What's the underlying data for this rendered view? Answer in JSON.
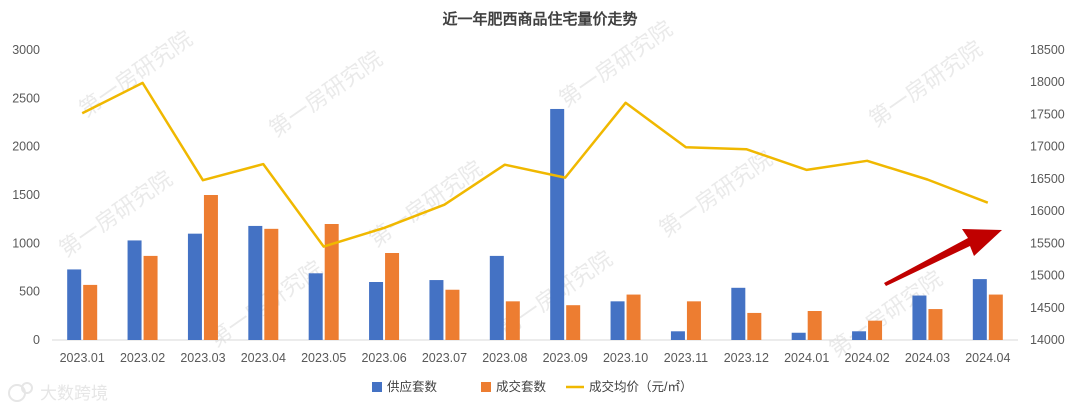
{
  "chart_data": {
    "type": "bar",
    "title": "近一年肥西商品住宅量价走势",
    "categories": [
      "2023.01",
      "2023.02",
      "2023.03",
      "2023.04",
      "2023.05",
      "2023.06",
      "2023.07",
      "2023.08",
      "2023.09",
      "2023.10",
      "2023.11",
      "2023.12",
      "2024.01",
      "2024.02",
      "2024.03",
      "2024.04"
    ],
    "series": [
      {
        "name": "供应套数",
        "type": "bar",
        "axis": "left",
        "color": "#4472c4",
        "values": [
          730,
          1030,
          1100,
          1180,
          690,
          600,
          620,
          870,
          2390,
          400,
          90,
          540,
          75,
          90,
          460,
          630
        ]
      },
      {
        "name": "成交套数",
        "type": "bar",
        "axis": "left",
        "color": "#ed7d31",
        "values": [
          570,
          870,
          1500,
          1150,
          1200,
          900,
          520,
          400,
          360,
          470,
          400,
          280,
          300,
          200,
          320,
          470
        ]
      },
      {
        "name": "成交均价（元/㎡）",
        "type": "line",
        "axis": "right",
        "color": "#f0b800",
        "values": [
          17520,
          17990,
          16480,
          16730,
          15450,
          15740,
          16100,
          16720,
          16520,
          17680,
          16990,
          16960,
          16640,
          16780,
          16490,
          16130
        ]
      }
    ],
    "left_axis": {
      "ticks": [
        "3000",
        "2500",
        "2000",
        "1500",
        "1000",
        "500",
        "0"
      ],
      "ylim": [
        0,
        3000
      ]
    },
    "right_axis": {
      "ticks": [
        "18500",
        "18000",
        "17500",
        "17000",
        "16500",
        "16000",
        "15500",
        "15000",
        "14500",
        "14000"
      ],
      "ylim": [
        14000,
        18500
      ]
    },
    "legend_position": "bottom",
    "grid": false
  },
  "watermark_text": "第一房研究院",
  "brand_text": "大数跨境"
}
